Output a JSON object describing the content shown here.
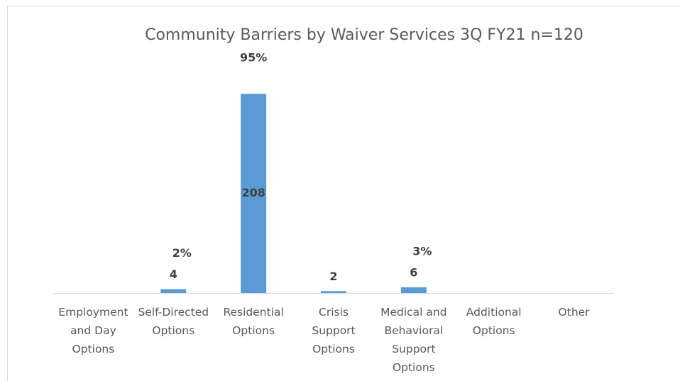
{
  "chart_data": {
    "type": "bar",
    "title": "Community Barriers by Waiver Services  3Q FY21 n=120",
    "categories": [
      "Employment and Day Options",
      "Self-Directed Options",
      "Residential Options",
      "Crisis Support Options",
      "Medical and Behavioral Support Options",
      "Additional Options",
      "Other"
    ],
    "values": [
      0,
      4,
      208,
      2,
      6,
      0,
      0
    ],
    "value_labels": [
      null,
      "4",
      "208",
      "2",
      "6",
      null,
      null
    ],
    "shares": {
      "values": [
        null,
        2,
        95,
        null,
        3,
        null,
        null
      ],
      "value_labels": [
        null,
        "2%",
        "95%",
        null,
        "3%",
        null,
        null
      ]
    },
    "color": "#5b9bd5",
    "ylim": [
      0,
      220
    ]
  }
}
